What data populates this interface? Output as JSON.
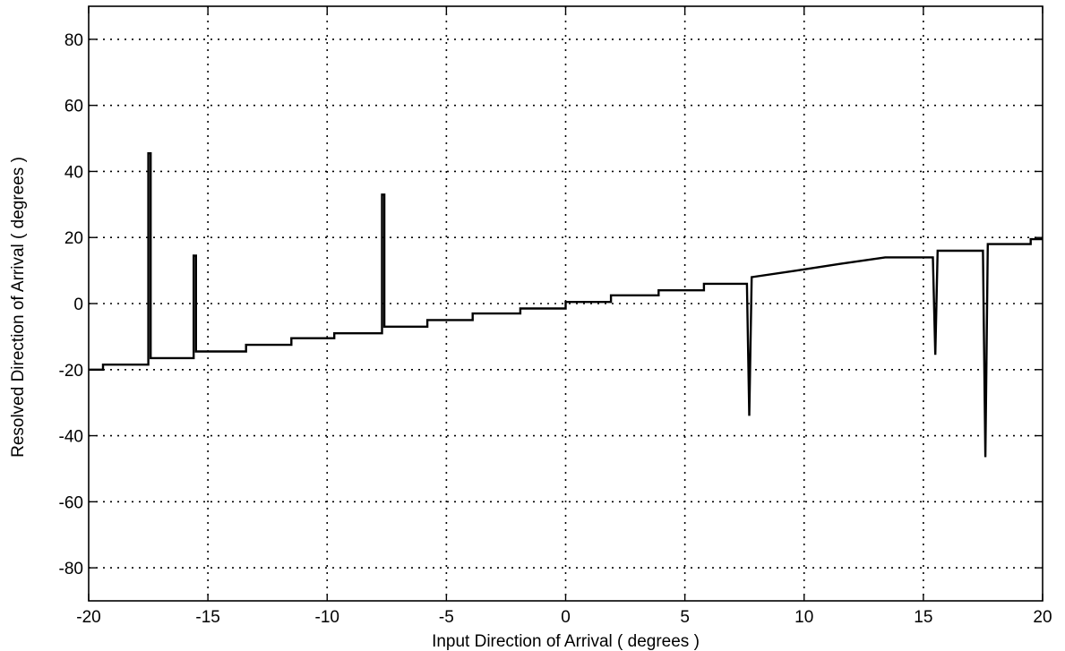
{
  "chart_data": {
    "type": "line",
    "title": "",
    "xlabel": "Input Direction of Arrival ( degrees )",
    "ylabel": "Resolved Direction of Arrival ( degrees )",
    "xlim": [
      -20,
      20
    ],
    "ylim": [
      -90,
      90
    ],
    "x_ticks": [
      -20,
      -15,
      -10,
      -5,
      0,
      5,
      10,
      15,
      20
    ],
    "x_tick_labels": [
      "-20",
      "-15",
      "-10",
      "-5",
      "0",
      "5",
      "10",
      "15",
      "20"
    ],
    "y_ticks": [
      80,
      60,
      40,
      20,
      0,
      -20,
      -40,
      -60,
      -80
    ],
    "y_tick_labels": [
      "80",
      "60",
      "40",
      "20",
      "0",
      "-20",
      "-40",
      "-60",
      "-80"
    ],
    "grid": true,
    "grid_style": "dotted",
    "series": [
      {
        "color": "#000000",
        "x": [
          -20,
          -19.4,
          -19.4,
          -17.5,
          -17.5,
          -17.4,
          -17.4,
          -15.6,
          -15.6,
          -15.5,
          -15.5,
          -13.4,
          -13.4,
          -11.5,
          -11.5,
          -9.7,
          -9.7,
          -7.7,
          -7.7,
          -7.6,
          -7.6,
          -5.8,
          -5.8,
          -3.9,
          -3.9,
          -1.9,
          -1.9,
          0,
          0,
          1.9,
          1.9,
          3.9,
          3.9,
          5.8,
          5.8,
          7.6,
          7.7,
          7.8,
          7.8,
          9.7,
          9.7,
          11.5,
          11.5,
          13.4,
          13.4,
          15.4,
          15.5,
          15.6,
          15.6,
          17.5,
          17.6,
          17.7,
          17.7,
          19.5,
          19.5,
          20
        ],
        "y": [
          -20,
          -20,
          -18.5,
          -18.5,
          45.5,
          45.5,
          -16.5,
          -16.5,
          14.5,
          14.5,
          -14.5,
          -14.5,
          -12.5,
          -12.5,
          -10.5,
          -10.5,
          -9,
          -9,
          33,
          33,
          -7,
          -7,
          -5,
          -5,
          -3,
          -3,
          -1.5,
          -1.5,
          0.5,
          0.5,
          2.5,
          2.5,
          4,
          4,
          6,
          6,
          -34,
          8,
          8,
          10,
          10,
          12,
          12,
          14,
          14,
          14,
          -15.5,
          16,
          16,
          16,
          -46.5,
          18,
          18,
          18,
          19.5,
          19.5
        ]
      }
    ]
  }
}
